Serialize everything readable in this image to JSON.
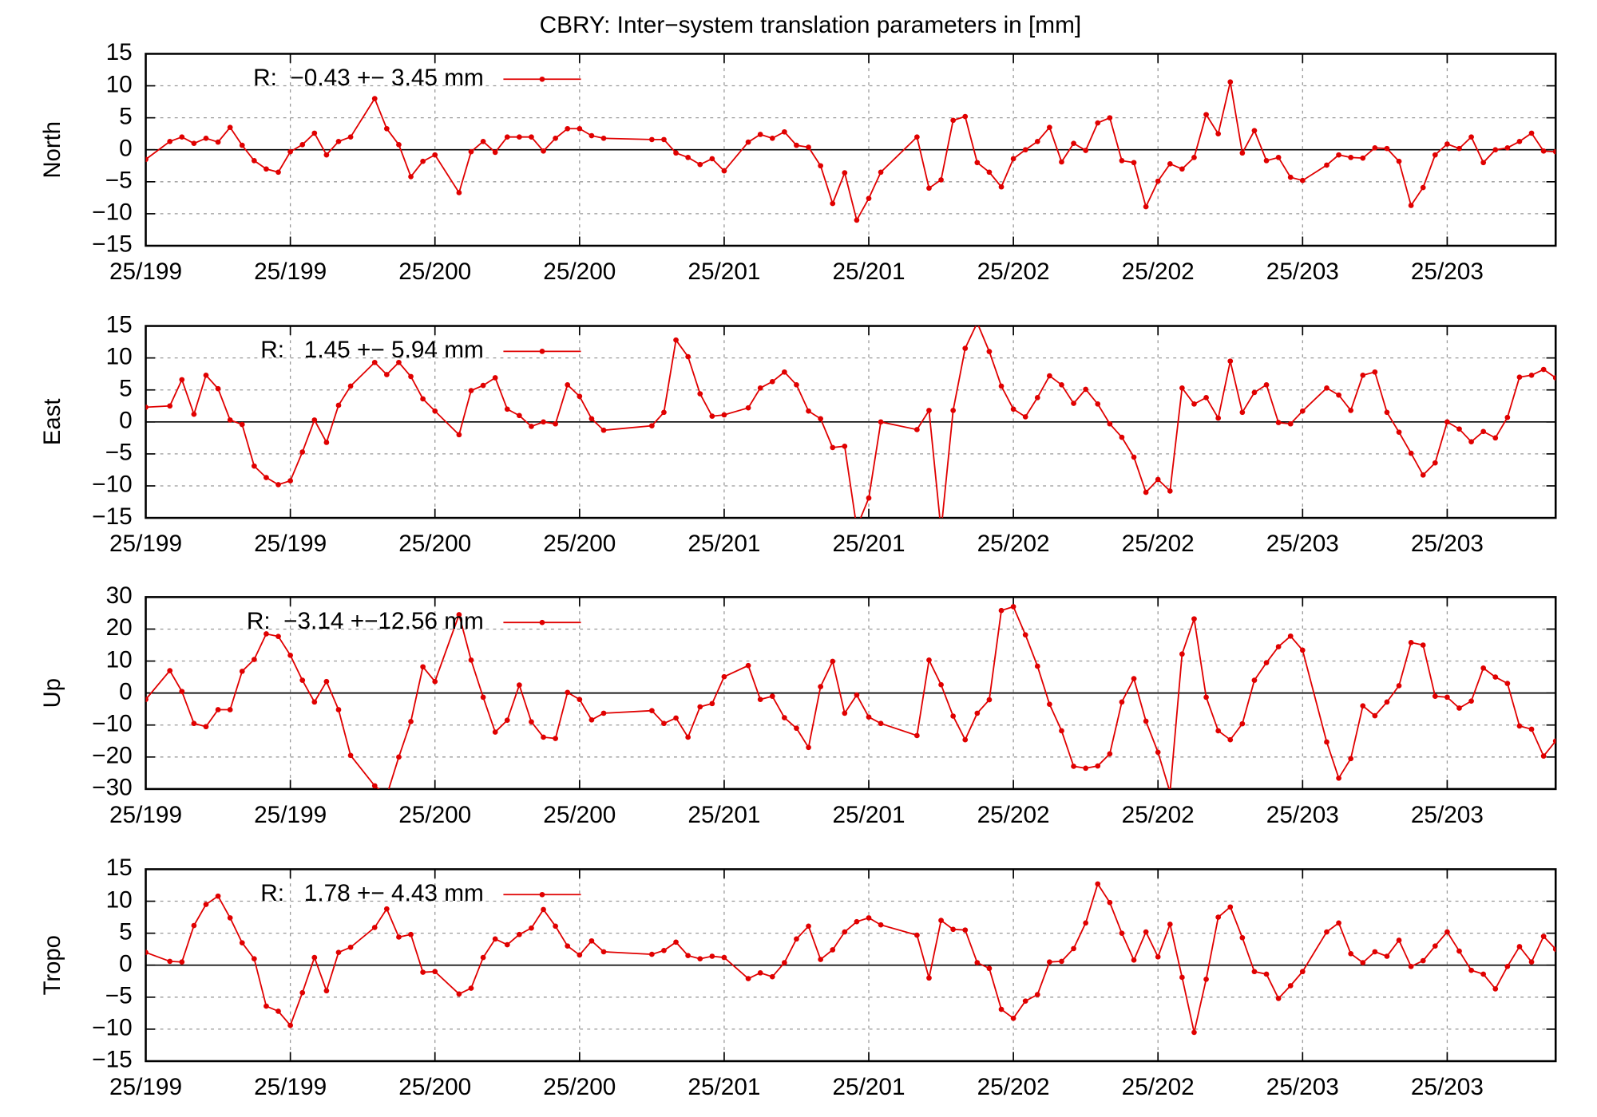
{
  "chart_data": [
    {
      "type": "line",
      "title": "CBRY: Inter−system translation parameters in [mm]",
      "ylabel": "North",
      "x": [
        0,
        2,
        3,
        4,
        5,
        6,
        7,
        8,
        9,
        10,
        11,
        12,
        13,
        14,
        15,
        16,
        17,
        19,
        20,
        21,
        22,
        23,
        24,
        26,
        27,
        28,
        29,
        30,
        31,
        32,
        33,
        34,
        35,
        36,
        37,
        38,
        42,
        43,
        44,
        45,
        46,
        47,
        48,
        50,
        51,
        52,
        53,
        54,
        55,
        56,
        57,
        58,
        59,
        60,
        61,
        64,
        65,
        66,
        67,
        68,
        69,
        70,
        71,
        72,
        73,
        74,
        75,
        76,
        77,
        78,
        79,
        80,
        81,
        82,
        83,
        84,
        85,
        86,
        87,
        88,
        89,
        90,
        91,
        92,
        93,
        94,
        95,
        96,
        98,
        99,
        100,
        101,
        102,
        103,
        104,
        105,
        106,
        107,
        108,
        109,
        110,
        111,
        112,
        113,
        114,
        115,
        116,
        117
      ],
      "xlim": [
        0,
        117
      ],
      "xticks": [
        {
          "value": 0,
          "label": "25/199"
        },
        {
          "value": 12,
          "label": "25/199"
        },
        {
          "value": 24,
          "label": "25/200"
        },
        {
          "value": 36,
          "label": "25/200"
        },
        {
          "value": 48,
          "label": "25/201"
        },
        {
          "value": 60,
          "label": "25/201"
        },
        {
          "value": 72,
          "label": "25/202"
        },
        {
          "value": 84,
          "label": "25/202"
        },
        {
          "value": 96,
          "label": "25/203"
        },
        {
          "value": 108,
          "label": "25/203"
        }
      ],
      "ylim": [
        -15,
        15
      ],
      "yticks": [
        {
          "value": -15,
          "label": "−15"
        },
        {
          "value": -10,
          "label": "−10"
        },
        {
          "value": -5,
          "label": "−5"
        },
        0,
        5,
        10,
        15
      ],
      "grid": true,
      "series": [
        {
          "name": "R:  −0.43 +− 3.45 mm",
          "color": "#e00000",
          "values": [
            -1.5,
            1.3,
            2,
            1,
            1.8,
            1.2,
            3.5,
            0.7,
            -1.7,
            -3,
            -3.5,
            -0.3,
            0.8,
            2.6,
            -0.8,
            1.3,
            2,
            8,
            3.3,
            0.8,
            -4.2,
            -1.8,
            -0.8,
            -6.7,
            -0.3,
            1.3,
            -0.4,
            2,
            2,
            2,
            -0.2,
            1.8,
            3.3,
            3.3,
            2.2,
            1.8,
            1.6,
            1.6,
            -0.5,
            -1.2,
            -2.3,
            -1.4,
            -3.3,
            1.2,
            2.4,
            1.8,
            2.8,
            0.7,
            0.4,
            -2.5,
            -8.4,
            -3.6,
            -11,
            -7.6,
            -3.5,
            2,
            -6,
            -4.7,
            4.6,
            5.2,
            -2,
            -3.5,
            -5.8,
            -1.4,
            0,
            1.3,
            3.5,
            -1.9,
            1,
            -0.1,
            4.2,
            5,
            -1.7,
            -2,
            -8.9,
            -4.9,
            -2.2,
            -3,
            -1.2,
            5.5,
            2.5,
            10.6,
            -0.5,
            3,
            -1.7,
            -1.2,
            -4.3,
            -4.8,
            -2.4,
            -0.8,
            -1.2,
            -1.3,
            0.3,
            0.2,
            -1.8,
            -8.7,
            -5.9,
            -0.8,
            0.9,
            0.2,
            2,
            -2,
            0,
            0.3,
            1.3,
            2.6,
            -0.2,
            -0.3
          ]
        }
      ]
    },
    {
      "type": "line",
      "ylabel": "East",
      "x": [
        0,
        2,
        3,
        4,
        5,
        6,
        7,
        8,
        9,
        10,
        11,
        12,
        13,
        14,
        15,
        16,
        17,
        19,
        20,
        21,
        22,
        23,
        24,
        26,
        27,
        28,
        29,
        30,
        31,
        32,
        33,
        34,
        35,
        36,
        37,
        38,
        42,
        43,
        44,
        45,
        46,
        47,
        48,
        50,
        51,
        52,
        53,
        54,
        55,
        56,
        57,
        58,
        59,
        60,
        61,
        64,
        65,
        66,
        67,
        68,
        69,
        70,
        71,
        72,
        73,
        74,
        75,
        76,
        77,
        78,
        79,
        80,
        81,
        82,
        83,
        84,
        85,
        86,
        87,
        88,
        89,
        90,
        91,
        92,
        93,
        94,
        95,
        96,
        98,
        99,
        100,
        101,
        102,
        103,
        104,
        105,
        106,
        107,
        108,
        109,
        110,
        111,
        112,
        113,
        114,
        115,
        116,
        117
      ],
      "xlim": [
        0,
        117
      ],
      "xticks": [
        {
          "value": 0,
          "label": "25/199"
        },
        {
          "value": 12,
          "label": "25/199"
        },
        {
          "value": 24,
          "label": "25/200"
        },
        {
          "value": 36,
          "label": "25/200"
        },
        {
          "value": 48,
          "label": "25/201"
        },
        {
          "value": 60,
          "label": "25/201"
        },
        {
          "value": 72,
          "label": "25/202"
        },
        {
          "value": 84,
          "label": "25/202"
        },
        {
          "value": 96,
          "label": "25/203"
        },
        {
          "value": 108,
          "label": "25/203"
        }
      ],
      "ylim": [
        -15,
        15
      ],
      "yticks": [
        {
          "value": -15,
          "label": "−15"
        },
        {
          "value": -10,
          "label": "−10"
        },
        {
          "value": -5,
          "label": "−5"
        },
        0,
        5,
        10,
        15
      ],
      "grid": true,
      "series": [
        {
          "name": "R:   1.45 +− 5.94 mm",
          "color": "#e00000",
          "values": [
            2.3,
            2.5,
            6.6,
            1.2,
            7.3,
            5.2,
            0.3,
            -0.4,
            -6.9,
            -8.7,
            -9.8,
            -9.2,
            -4.7,
            0.3,
            -3.2,
            2.6,
            5.6,
            9.3,
            7.4,
            9.3,
            7.1,
            3.6,
            1.7,
            -2,
            4.9,
            5.7,
            6.9,
            2,
            1,
            -0.7,
            0,
            -0.3,
            5.8,
            4,
            0.5,
            -1.3,
            -0.6,
            1.5,
            12.8,
            10.2,
            4.4,
            0.9,
            1.1,
            2.2,
            5.3,
            6.3,
            7.8,
            5.8,
            1.7,
            0.5,
            -4,
            -3.8,
            -16.5,
            -11.9,
            0,
            -1.2,
            1.8,
            -17,
            1.8,
            11.5,
            15.5,
            11,
            5.6,
            2,
            0.8,
            3.8,
            7.2,
            5.8,
            2.9,
            5.1,
            2.8,
            -0.3,
            -2.4,
            -5.5,
            -11,
            -9,
            -10.8,
            5.3,
            2.8,
            3.8,
            0.6,
            9.5,
            1.5,
            4.6,
            5.8,
            -0.1,
            -0.3,
            1.7,
            5.3,
            4.2,
            1.8,
            7.3,
            7.8,
            1.5,
            -1.6,
            -4.9,
            -8.3,
            -6.4,
            0,
            -1.1,
            -3.1,
            -1.5,
            -2.5,
            0.7,
            7,
            7.3,
            8.2,
            6.9
          ]
        }
      ]
    },
    {
      "type": "line",
      "ylabel": "Up",
      "x": [
        0,
        2,
        3,
        4,
        5,
        6,
        7,
        8,
        9,
        10,
        11,
        12,
        13,
        14,
        15,
        16,
        17,
        19,
        20,
        21,
        22,
        23,
        24,
        26,
        27,
        28,
        29,
        30,
        31,
        32,
        33,
        34,
        35,
        36,
        37,
        38,
        42,
        43,
        44,
        45,
        46,
        47,
        48,
        50,
        51,
        52,
        53,
        54,
        55,
        56,
        57,
        58,
        59,
        60,
        61,
        64,
        65,
        66,
        67,
        68,
        69,
        70,
        71,
        72,
        73,
        74,
        75,
        76,
        77,
        78,
        79,
        80,
        81,
        82,
        83,
        84,
        85,
        86,
        87,
        88,
        89,
        90,
        91,
        92,
        93,
        94,
        95,
        96,
        98,
        99,
        100,
        101,
        102,
        103,
        104,
        105,
        106,
        107,
        108,
        109,
        110,
        111,
        112,
        113,
        114,
        115,
        116,
        117
      ],
      "xlim": [
        0,
        117
      ],
      "xticks": [
        {
          "value": 0,
          "label": "25/199"
        },
        {
          "value": 12,
          "label": "25/199"
        },
        {
          "value": 24,
          "label": "25/200"
        },
        {
          "value": 36,
          "label": "25/200"
        },
        {
          "value": 48,
          "label": "25/201"
        },
        {
          "value": 60,
          "label": "25/201"
        },
        {
          "value": 72,
          "label": "25/202"
        },
        {
          "value": 84,
          "label": "25/202"
        },
        {
          "value": 96,
          "label": "25/203"
        },
        {
          "value": 108,
          "label": "25/203"
        }
      ],
      "ylim": [
        -30,
        30
      ],
      "yticks": [
        {
          "value": -30,
          "label": "−30"
        },
        {
          "value": -20,
          "label": "−20"
        },
        {
          "value": -10,
          "label": "−10"
        },
        0,
        10,
        20,
        30
      ],
      "grid": true,
      "series": [
        {
          "name": "R:  −3.14 +−12.56 mm",
          "color": "#e00000",
          "values": [
            -2,
            7,
            0.5,
            -9.5,
            -10.5,
            -5.2,
            -5.2,
            6.8,
            10.5,
            18.5,
            17.7,
            11.8,
            4,
            -2.8,
            3.6,
            -5.2,
            -19.5,
            -29,
            -32,
            -20,
            -8.9,
            8.2,
            3.6,
            24.5,
            10.3,
            -1.3,
            -12.2,
            -8.5,
            2.5,
            -9,
            -13.8,
            -14.2,
            0.2,
            -2,
            -8.4,
            -6.3,
            -5.5,
            -9.5,
            -7.8,
            -13.8,
            -4.3,
            -3.3,
            5.1,
            8.6,
            -2,
            -1,
            -7.7,
            -11,
            -17,
            2,
            9.9,
            -6.3,
            -0.6,
            -7.5,
            -9.5,
            -13.3,
            10.3,
            2.6,
            -7.2,
            -14.6,
            -6.3,
            -2.1,
            25.8,
            27,
            18.2,
            8.4,
            -3.5,
            -11.8,
            -22.9,
            -23.5,
            -22.8,
            -19,
            -2.8,
            4.5,
            -8.8,
            -18.5,
            -31,
            12.2,
            23.2,
            -1.3,
            -11.8,
            -14.6,
            -9.6,
            4,
            9.5,
            14.5,
            17.8,
            13.4,
            -15.3,
            -26.6,
            -20.5,
            -4,
            -7.1,
            -2.8,
            2.3,
            15.8,
            15,
            -1,
            -1.3,
            -4.7,
            -2.5,
            7.8,
            5,
            3,
            -10.3,
            -11.3,
            -19.7,
            -15
          ]
        }
      ]
    },
    {
      "type": "line",
      "ylabel": "Tropo",
      "x": [
        0,
        2,
        3,
        4,
        5,
        6,
        7,
        8,
        9,
        10,
        11,
        12,
        13,
        14,
        15,
        16,
        17,
        19,
        20,
        21,
        22,
        23,
        24,
        26,
        27,
        28,
        29,
        30,
        31,
        32,
        33,
        34,
        35,
        36,
        37,
        38,
        42,
        43,
        44,
        45,
        46,
        47,
        48,
        50,
        51,
        52,
        53,
        54,
        55,
        56,
        57,
        58,
        59,
        60,
        61,
        64,
        65,
        66,
        67,
        68,
        69,
        70,
        71,
        72,
        73,
        74,
        75,
        76,
        77,
        78,
        79,
        80,
        81,
        82,
        83,
        84,
        85,
        86,
        87,
        88,
        89,
        90,
        91,
        92,
        93,
        94,
        95,
        96,
        98,
        99,
        100,
        101,
        102,
        103,
        104,
        105,
        106,
        107,
        108,
        109,
        110,
        111,
        112,
        113,
        114,
        115,
        116,
        117
      ],
      "xlim": [
        0,
        117
      ],
      "xticks": [
        {
          "value": 0,
          "label": "25/199"
        },
        {
          "value": 12,
          "label": "25/199"
        },
        {
          "value": 24,
          "label": "25/200"
        },
        {
          "value": 36,
          "label": "25/200"
        },
        {
          "value": 48,
          "label": "25/201"
        },
        {
          "value": 60,
          "label": "25/201"
        },
        {
          "value": 72,
          "label": "25/202"
        },
        {
          "value": 84,
          "label": "25/202"
        },
        {
          "value": 96,
          "label": "25/203"
        },
        {
          "value": 108,
          "label": "25/203"
        }
      ],
      "ylim": [
        -15,
        15
      ],
      "yticks": [
        {
          "value": -15,
          "label": "−15"
        },
        {
          "value": -10,
          "label": "−10"
        },
        {
          "value": -5,
          "label": "−5"
        },
        0,
        5,
        10,
        15
      ],
      "grid": true,
      "series": [
        {
          "name": "R:   1.78 +− 4.43 mm",
          "color": "#e00000",
          "values": [
            2,
            0.6,
            0.5,
            6.2,
            9.5,
            10.8,
            7.4,
            3.5,
            1,
            -6.4,
            -7.2,
            -9.4,
            -4.3,
            1.2,
            -4,
            2,
            2.8,
            5.9,
            8.8,
            4.4,
            4.8,
            -1.1,
            -1,
            -4.5,
            -3.6,
            1.2,
            4.1,
            3.2,
            4.8,
            5.8,
            8.7,
            6.1,
            3,
            1.6,
            3.8,
            2.1,
            1.7,
            2.3,
            3.6,
            1.5,
            1,
            1.4,
            1.2,
            -2.1,
            -1.2,
            -1.8,
            0.4,
            4.1,
            6.1,
            0.9,
            2.4,
            5.2,
            6.8,
            7.4,
            6.3,
            4.7,
            -2,
            7,
            5.6,
            5.5,
            0.4,
            -0.5,
            -6.9,
            -8.3,
            -5.6,
            -4.6,
            0.5,
            0.6,
            2.6,
            6.6,
            12.7,
            9.8,
            5,
            0.8,
            5.2,
            1.3,
            6.4,
            -1.9,
            -10.5,
            -2.2,
            7.5,
            9.1,
            4.3,
            -1,
            -1.4,
            -5.2,
            -3.2,
            -1,
            5.2,
            6.6,
            1.8,
            0.4,
            2.1,
            1.4,
            3.9,
            -0.2,
            0.7,
            3,
            5.2,
            2.2,
            -0.8,
            -1.4,
            -3.7,
            -0.2,
            2.9,
            0.5,
            4.5,
            2.5
          ]
        }
      ]
    }
  ]
}
